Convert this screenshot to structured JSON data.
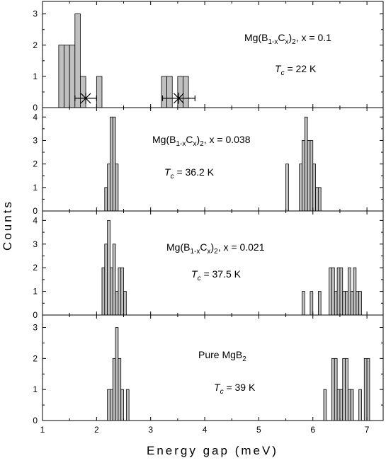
{
  "chart_data": {
    "type": "bar",
    "shared_x": {
      "label": "Energy gap (meV)",
      "range": [
        1,
        7.3
      ],
      "ticks": [
        1,
        2,
        3,
        4,
        5,
        6,
        7
      ],
      "tick_labels": [
        "1",
        "2",
        "3",
        "4",
        "5",
        "6",
        "7"
      ]
    },
    "y_label": "Counts",
    "bar_color": "#c0c0c0",
    "panels": [
      {
        "title_base": "Mg(B",
        "title_sub1": "1-x",
        "title_mid": "C",
        "title_sub2": "x",
        "title_close": ")",
        "title_sub3": "2",
        "title_tail": ",  x = 0.1",
        "tc_label": "T",
        "tc_sub": "c",
        "tc_value": " = 22 K",
        "ylim": [
          0,
          3.4
        ],
        "yticks": [
          0,
          1,
          2,
          3
        ],
        "bin_width": 0.1,
        "bins": [
          {
            "x": 1.3,
            "count": 2
          },
          {
            "x": 1.4,
            "count": 2
          },
          {
            "x": 1.5,
            "count": 2
          },
          {
            "x": 1.6,
            "count": 3
          },
          {
            "x": 1.7,
            "count": 1
          },
          {
            "x": 2.0,
            "count": 1
          },
          {
            "x": 3.2,
            "count": 1
          },
          {
            "x": 3.3,
            "count": 1
          },
          {
            "x": 3.5,
            "count": 1
          },
          {
            "x": 3.6,
            "count": 1
          }
        ],
        "markers": [
          {
            "x": 1.8,
            "y": 0.3,
            "xerr": 0.2
          },
          {
            "x": 3.52,
            "y": 0.3,
            "xerr": 0.3
          }
        ]
      },
      {
        "title_base": "Mg(B",
        "title_sub1": "1-x",
        "title_mid": "C",
        "title_sub2": "x",
        "title_close": ")",
        "title_sub3": "2",
        "title_tail": ",  x = 0.038",
        "tc_label": "T",
        "tc_sub": "c",
        "tc_value": " = 36.2 K",
        "ylim": [
          0,
          4.4
        ],
        "yticks": [
          0,
          1,
          2,
          3,
          4
        ],
        "bin_width": 0.05,
        "bins": [
          {
            "x": 2.15,
            "count": 1
          },
          {
            "x": 2.2,
            "count": 2
          },
          {
            "x": 2.25,
            "count": 4
          },
          {
            "x": 2.3,
            "count": 4
          },
          {
            "x": 2.35,
            "count": 2
          },
          {
            "x": 5.5,
            "count": 2
          },
          {
            "x": 5.75,
            "count": 2
          },
          {
            "x": 5.8,
            "count": 3
          },
          {
            "x": 5.85,
            "count": 4
          },
          {
            "x": 5.9,
            "count": 3
          },
          {
            "x": 5.95,
            "count": 3
          },
          {
            "x": 6.0,
            "count": 2
          },
          {
            "x": 6.05,
            "count": 1
          },
          {
            "x": 6.1,
            "count": 1
          }
        ]
      },
      {
        "title_base": "Mg(B",
        "title_sub1": "1-x",
        "title_mid": "C",
        "title_sub2": "x",
        "title_close": ")",
        "title_sub3": "2",
        "title_tail": ",  x = 0.021",
        "tc_label": "T",
        "tc_sub": "c",
        "tc_value": " = 37.5 K",
        "ylim": [
          0,
          4.4
        ],
        "yticks": [
          0,
          1,
          2,
          3,
          4
        ],
        "bin_width": 0.05,
        "bins": [
          {
            "x": 2.1,
            "count": 2
          },
          {
            "x": 2.15,
            "count": 3
          },
          {
            "x": 2.2,
            "count": 4
          },
          {
            "x": 2.25,
            "count": 2
          },
          {
            "x": 2.3,
            "count": 3
          },
          {
            "x": 2.35,
            "count": 1
          },
          {
            "x": 2.4,
            "count": 2
          },
          {
            "x": 2.45,
            "count": 2
          },
          {
            "x": 2.5,
            "count": 1
          },
          {
            "x": 5.8,
            "count": 1
          },
          {
            "x": 5.95,
            "count": 1
          },
          {
            "x": 6.1,
            "count": 1
          },
          {
            "x": 6.3,
            "count": 2
          },
          {
            "x": 6.35,
            "count": 2
          },
          {
            "x": 6.4,
            "count": 1
          },
          {
            "x": 6.45,
            "count": 2
          },
          {
            "x": 6.5,
            "count": 2
          },
          {
            "x": 6.55,
            "count": 1
          },
          {
            "x": 6.6,
            "count": 1
          },
          {
            "x": 6.65,
            "count": 2
          },
          {
            "x": 6.7,
            "count": 1
          },
          {
            "x": 6.75,
            "count": 2
          },
          {
            "x": 6.8,
            "count": 1
          },
          {
            "x": 6.85,
            "count": 1
          }
        ]
      },
      {
        "title_base": "Pure MgB",
        "title_sub3": "2",
        "tc_label": "T",
        "tc_sub": "c",
        "tc_value": " = 39 K",
        "ylim": [
          0,
          3.4
        ],
        "yticks": [
          0,
          1,
          2,
          3
        ],
        "bin_width": 0.05,
        "bins": [
          {
            "x": 2.2,
            "count": 1
          },
          {
            "x": 2.25,
            "count": 1
          },
          {
            "x": 2.3,
            "count": 2
          },
          {
            "x": 2.35,
            "count": 3
          },
          {
            "x": 2.4,
            "count": 2
          },
          {
            "x": 2.45,
            "count": 1
          },
          {
            "x": 2.55,
            "count": 1
          },
          {
            "x": 6.2,
            "count": 1
          },
          {
            "x": 6.35,
            "count": 2
          },
          {
            "x": 6.4,
            "count": 2
          },
          {
            "x": 6.45,
            "count": 1
          },
          {
            "x": 6.5,
            "count": 1
          },
          {
            "x": 6.55,
            "count": 2
          },
          {
            "x": 6.6,
            "count": 2
          },
          {
            "x": 6.65,
            "count": 1
          },
          {
            "x": 6.7,
            "count": 1
          },
          {
            "x": 6.85,
            "count": 1
          },
          {
            "x": 6.95,
            "count": 2
          },
          {
            "x": 7.0,
            "count": 2
          }
        ]
      }
    ]
  }
}
